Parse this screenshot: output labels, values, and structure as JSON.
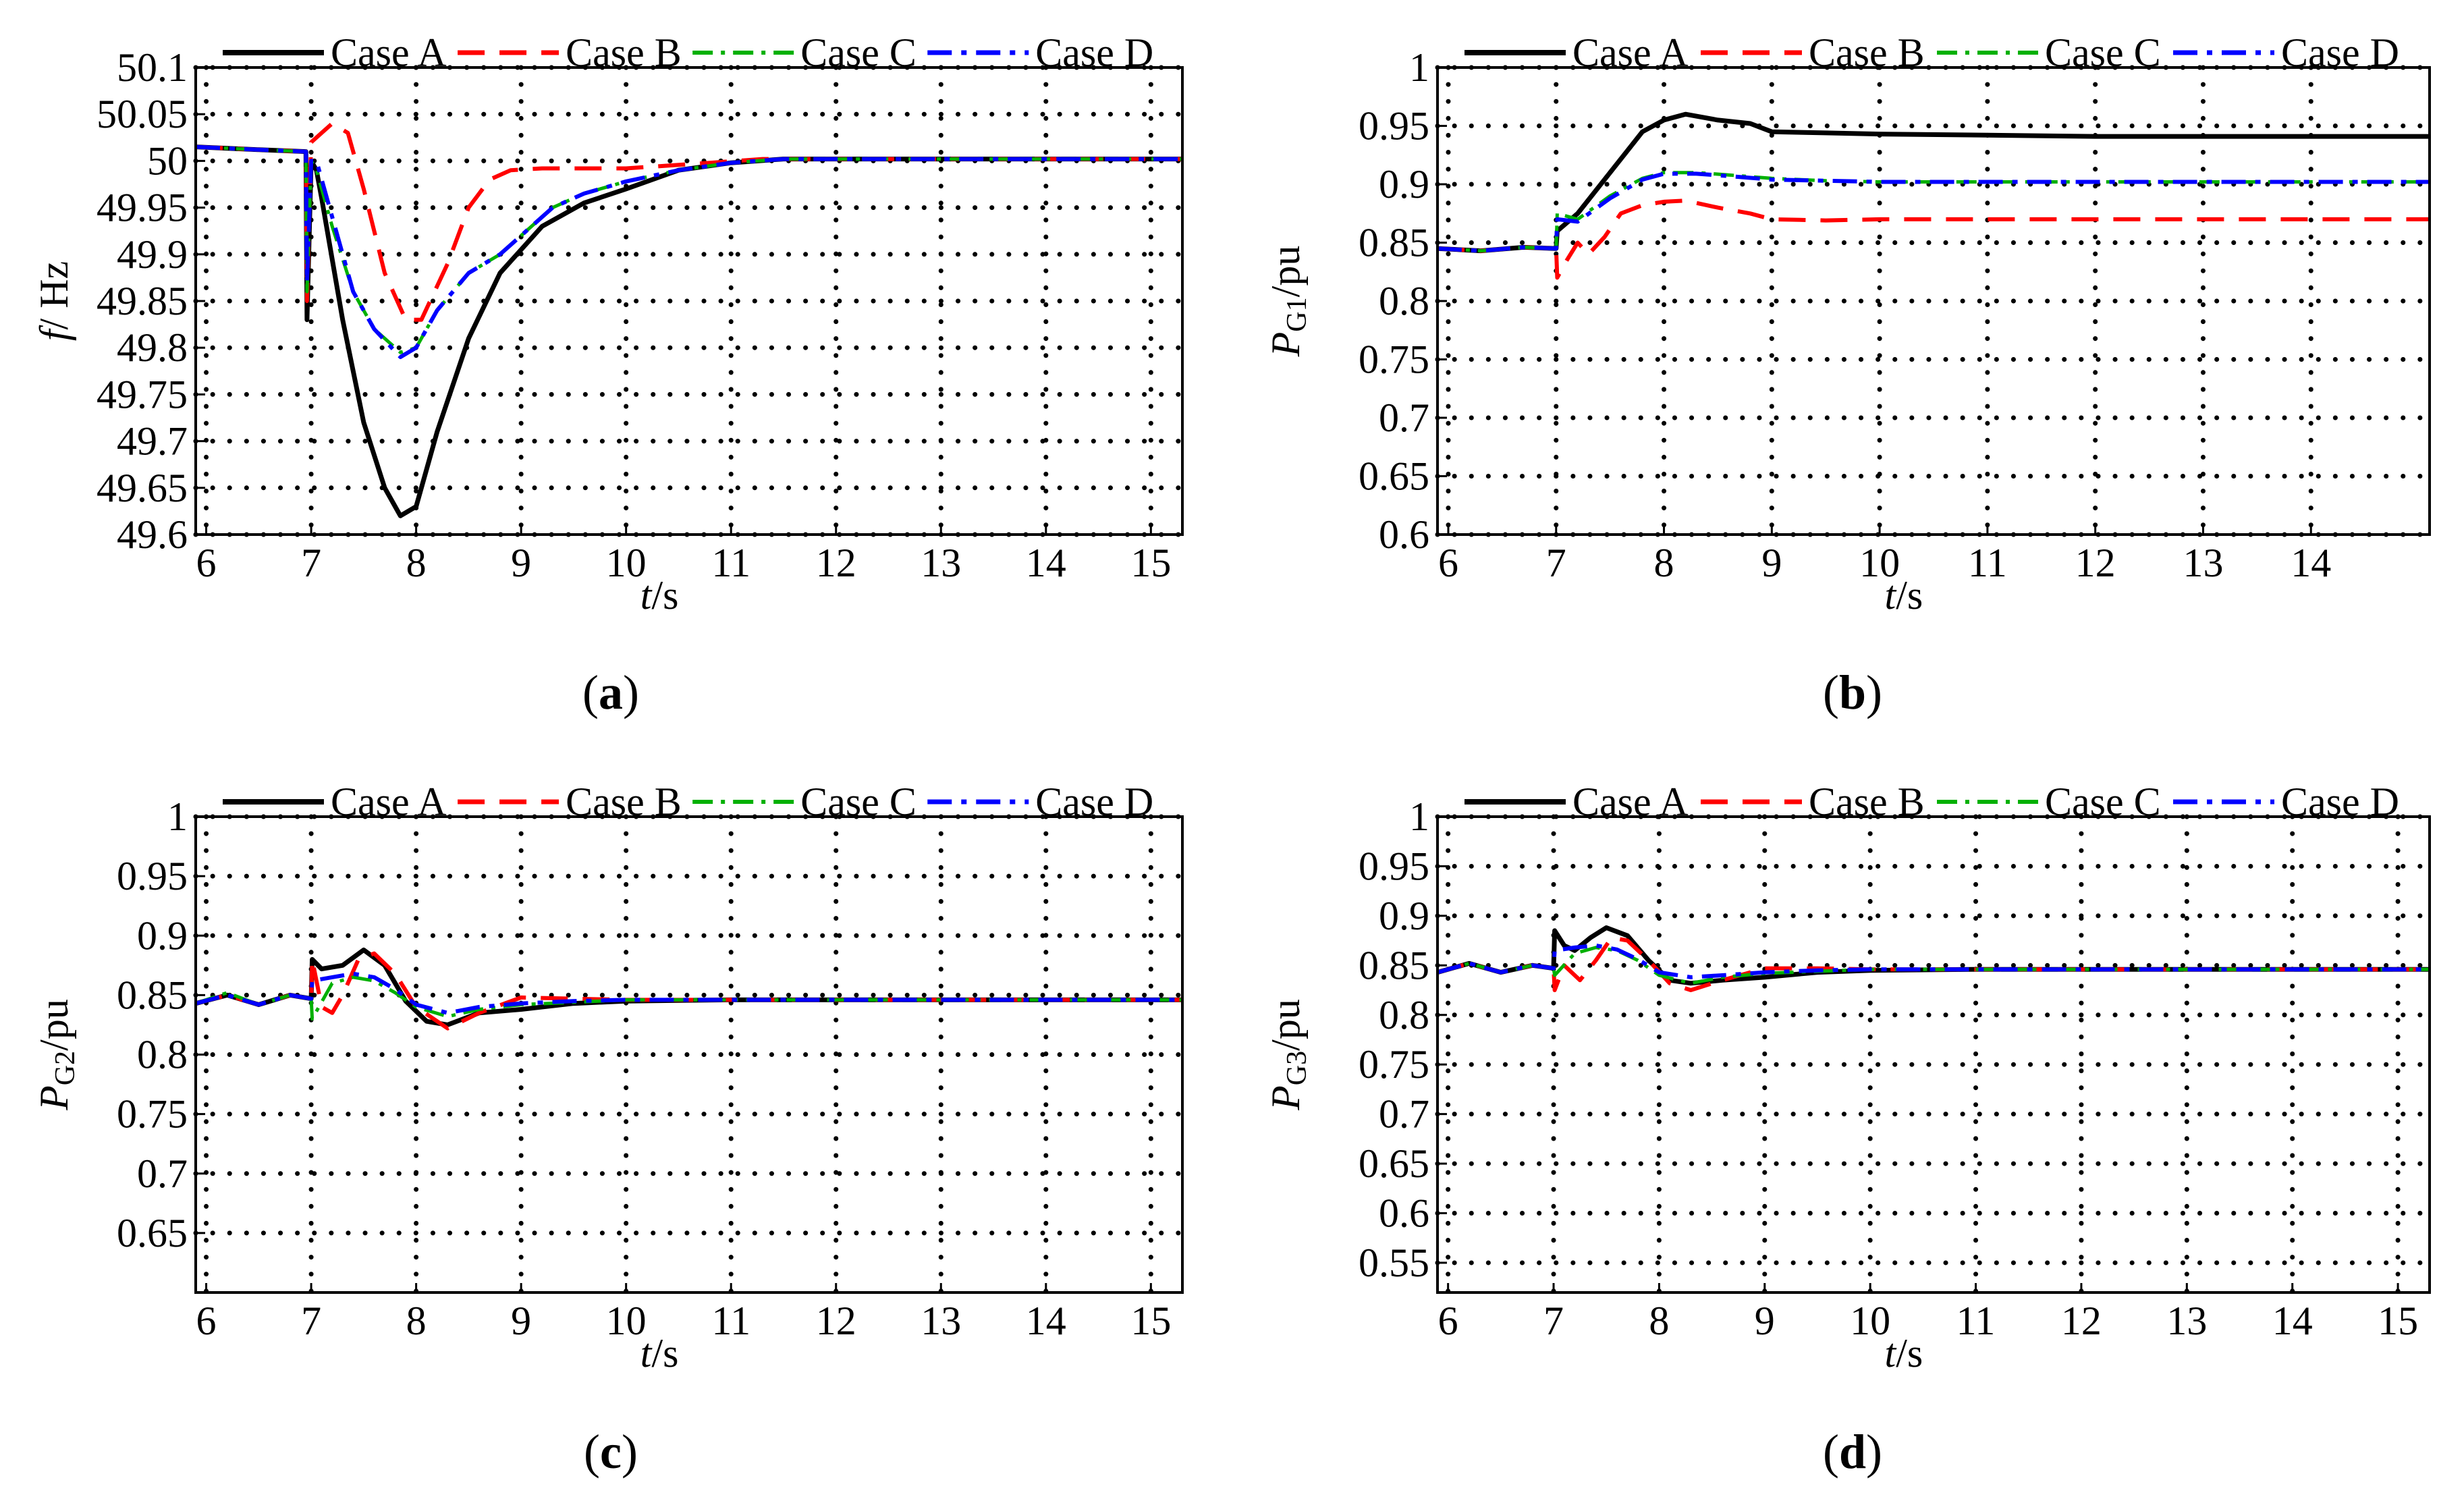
{
  "figure": {
    "panel_labels": [
      "a",
      "b",
      "c",
      "d"
    ]
  },
  "colors": {
    "Case A": "#000000",
    "Case B": "#ff0000",
    "Case C": "#00b000",
    "Case D": "#0000ff"
  },
  "chart_data": [
    {
      "id": "a",
      "type": "line",
      "title": "",
      "label": "a",
      "ylabel_main": "f",
      "ylabel_sub": "",
      "ylabel_unit": "/ Hz",
      "xlabel_main": "t",
      "xlabel_unit": "/s",
      "xlim": [
        5.9,
        15.3
      ],
      "ylim": [
        49.6,
        50.1
      ],
      "xticks": [
        6,
        7,
        8,
        9,
        10,
        11,
        12,
        13,
        14,
        15
      ],
      "yticks": [
        "49.6",
        "49.65",
        "49.7",
        "49.75",
        "49.8",
        "49.85",
        "49.9",
        "49.95",
        "50",
        "50.05",
        "50.1"
      ],
      "legend": [
        "Case A",
        "Case B",
        "Case C",
        "Case D"
      ],
      "series": [
        {
          "name": "Case A",
          "x": [
            5.9,
            6.5,
            6.95,
            6.96,
            7.0,
            7.05,
            7.1,
            7.3,
            7.5,
            7.7,
            7.85,
            8.0,
            8.2,
            8.5,
            8.8,
            9.2,
            9.6,
            10.0,
            10.5,
            11.0,
            11.5,
            12,
            13,
            14,
            15.3
          ],
          "y": [
            50.015,
            50.012,
            50.01,
            49.83,
            50.0,
            49.99,
            49.96,
            49.83,
            49.72,
            49.65,
            49.62,
            49.63,
            49.71,
            49.81,
            49.88,
            49.93,
            49.955,
            49.97,
            49.99,
            49.998,
            50.002,
            50.002,
            50.002,
            50.002,
            50.002
          ]
        },
        {
          "name": "Case B",
          "x": [
            5.9,
            6.5,
            6.95,
            6.96,
            7.0,
            7.1,
            7.2,
            7.35,
            7.5,
            7.7,
            7.9,
            8.05,
            8.3,
            8.5,
            8.7,
            8.9,
            9.2,
            10.0,
            10.8,
            11.3,
            12,
            13,
            14,
            15.3
          ],
          "y": [
            50.015,
            50.012,
            50.01,
            49.85,
            50.02,
            50.03,
            50.04,
            50.03,
            49.97,
            49.88,
            49.83,
            49.83,
            49.89,
            49.95,
            49.98,
            49.99,
            49.992,
            49.992,
            49.998,
            50.002,
            50.002,
            50.002,
            50.002,
            50.002
          ]
        },
        {
          "name": "Case C",
          "x": [
            5.9,
            6.5,
            6.95,
            6.96,
            7.0,
            7.05,
            7.2,
            7.4,
            7.6,
            7.85,
            8.0,
            8.2,
            8.5,
            8.8,
            9.0,
            9.3,
            9.6,
            10.0,
            10.5,
            11.0,
            11.5,
            12,
            13,
            14,
            15.3
          ],
          "y": [
            50.015,
            50.012,
            50.01,
            49.86,
            50.0,
            49.99,
            49.93,
            49.86,
            49.82,
            49.795,
            49.8,
            49.84,
            49.88,
            49.9,
            49.92,
            49.95,
            49.965,
            49.978,
            49.99,
            49.998,
            50.002,
            50.002,
            50.002,
            50.002,
            50.002
          ]
        },
        {
          "name": "Case D",
          "x": [
            5.9,
            6.5,
            6.95,
            6.96,
            7.0,
            7.05,
            7.2,
            7.4,
            7.6,
            7.85,
            8.0,
            8.2,
            8.5,
            8.8,
            9.0,
            9.3,
            9.6,
            10.0,
            10.5,
            11.0,
            11.5,
            12,
            13,
            14,
            15.3
          ],
          "y": [
            50.015,
            50.012,
            50.01,
            49.87,
            50.0,
            50.0,
            49.94,
            49.86,
            49.82,
            49.79,
            49.8,
            49.84,
            49.88,
            49.9,
            49.92,
            49.95,
            49.965,
            49.978,
            49.99,
            49.998,
            50.002,
            50.002,
            50.002,
            50.002,
            50.002
          ]
        }
      ]
    },
    {
      "id": "b",
      "type": "line",
      "title": "",
      "label": "b",
      "ylabel_main": "P",
      "ylabel_sub": "G1",
      "ylabel_unit": "/pu",
      "xlabel_main": "t",
      "xlabel_unit": "/s",
      "xlim": [
        5.9,
        15.1
      ],
      "ylim": [
        0.6,
        1.0
      ],
      "xticks": [
        6,
        7,
        8,
        9,
        10,
        11,
        12,
        13,
        14
      ],
      "yticks": [
        "0.6",
        "0.65",
        "0.7",
        "0.75",
        "0.8",
        "0.85",
        "0.9",
        "0.95",
        "1"
      ],
      "legend": [
        "Case A",
        "Case B",
        "Case C",
        "Case D"
      ],
      "series": [
        {
          "name": "Case A",
          "x": [
            5.9,
            6.3,
            6.7,
            7.0,
            7.01,
            7.2,
            7.5,
            7.8,
            8.0,
            8.2,
            8.5,
            8.8,
            9.0,
            9.5,
            10,
            11,
            12,
            13,
            14,
            15.1
          ],
          "y": [
            0.845,
            0.843,
            0.846,
            0.845,
            0.86,
            0.875,
            0.91,
            0.945,
            0.955,
            0.96,
            0.955,
            0.952,
            0.945,
            0.944,
            0.943,
            0.942,
            0.941,
            0.941,
            0.941,
            0.941
          ]
        },
        {
          "name": "Case B",
          "x": [
            5.9,
            6.3,
            6.7,
            7.0,
            7.01,
            7.1,
            7.2,
            7.3,
            7.45,
            7.6,
            7.8,
            8.0,
            8.2,
            8.5,
            8.8,
            9.0,
            9.5,
            10,
            11,
            12,
            13,
            14,
            15.1
          ],
          "y": [
            0.845,
            0.843,
            0.846,
            0.845,
            0.82,
            0.835,
            0.85,
            0.84,
            0.855,
            0.875,
            0.882,
            0.885,
            0.886,
            0.88,
            0.875,
            0.87,
            0.869,
            0.87,
            0.87,
            0.87,
            0.87,
            0.87,
            0.87
          ]
        },
        {
          "name": "Case C",
          "x": [
            5.9,
            6.3,
            6.7,
            7.0,
            7.01,
            7.2,
            7.5,
            7.8,
            8.0,
            8.3,
            8.6,
            9.0,
            9.5,
            10,
            11,
            12,
            13,
            14,
            15.1
          ],
          "y": [
            0.845,
            0.843,
            0.846,
            0.845,
            0.875,
            0.87,
            0.89,
            0.905,
            0.91,
            0.91,
            0.908,
            0.905,
            0.903,
            0.902,
            0.902,
            0.902,
            0.902,
            0.902,
            0.902
          ]
        },
        {
          "name": "Case D",
          "x": [
            5.9,
            6.3,
            6.7,
            7.0,
            7.01,
            7.2,
            7.5,
            7.8,
            8.0,
            8.3,
            8.6,
            9.0,
            9.5,
            10,
            11,
            12,
            13,
            14,
            15.1
          ],
          "y": [
            0.845,
            0.843,
            0.846,
            0.845,
            0.87,
            0.868,
            0.888,
            0.904,
            0.909,
            0.909,
            0.907,
            0.904,
            0.903,
            0.902,
            0.902,
            0.902,
            0.902,
            0.902,
            0.902
          ]
        }
      ]
    },
    {
      "id": "c",
      "type": "line",
      "title": "",
      "label": "c",
      "ylabel_main": "P",
      "ylabel_sub": "G2",
      "ylabel_unit": "/pu",
      "xlabel_main": "t",
      "xlabel_unit": "/s",
      "xlim": [
        5.9,
        15.3
      ],
      "ylim": [
        0.6,
        1.0
      ],
      "xticks": [
        6,
        7,
        8,
        9,
        10,
        11,
        12,
        13,
        14,
        15
      ],
      "yticks": [
        "0.65",
        "0.7",
        "0.75",
        "0.8",
        "0.85",
        "0.9",
        "0.95",
        "1"
      ],
      "legend": [
        "Case A",
        "Case B",
        "Case C",
        "Case D"
      ],
      "series": [
        {
          "name": "Case A",
          "x": [
            5.9,
            6.2,
            6.5,
            6.8,
            7.0,
            7.01,
            7.1,
            7.3,
            7.5,
            7.7,
            7.9,
            8.1,
            8.3,
            8.6,
            9.0,
            9.5,
            10,
            11,
            12,
            13,
            14,
            15.3
          ],
          "y": [
            0.843,
            0.85,
            0.842,
            0.85,
            0.847,
            0.88,
            0.872,
            0.875,
            0.888,
            0.875,
            0.845,
            0.828,
            0.825,
            0.835,
            0.838,
            0.843,
            0.845,
            0.846,
            0.846,
            0.846,
            0.846,
            0.846
          ]
        },
        {
          "name": "Case B",
          "x": [
            5.9,
            6.2,
            6.5,
            6.8,
            7.0,
            7.01,
            7.1,
            7.2,
            7.3,
            7.45,
            7.6,
            7.8,
            8.0,
            8.3,
            8.6,
            9.0,
            9.5,
            10,
            11,
            12,
            13,
            14,
            15.3
          ],
          "y": [
            0.843,
            0.85,
            0.842,
            0.85,
            0.847,
            0.88,
            0.84,
            0.835,
            0.85,
            0.88,
            0.885,
            0.868,
            0.84,
            0.822,
            0.835,
            0.848,
            0.847,
            0.846,
            0.846,
            0.846,
            0.846,
            0.846,
            0.846
          ]
        },
        {
          "name": "Case C",
          "x": [
            5.9,
            6.2,
            6.5,
            6.8,
            7.0,
            7.01,
            7.2,
            7.4,
            7.6,
            7.8,
            8.0,
            8.3,
            8.6,
            9.0,
            9.5,
            10,
            11,
            12,
            13,
            14,
            15.3
          ],
          "y": [
            0.843,
            0.852,
            0.842,
            0.85,
            0.847,
            0.83,
            0.86,
            0.865,
            0.862,
            0.852,
            0.84,
            0.832,
            0.838,
            0.842,
            0.844,
            0.846,
            0.846,
            0.846,
            0.846,
            0.846,
            0.846
          ]
        },
        {
          "name": "Case D",
          "x": [
            5.9,
            6.2,
            6.5,
            6.8,
            7.0,
            7.01,
            7.2,
            7.4,
            7.6,
            7.8,
            8.0,
            8.3,
            8.6,
            9.0,
            9.5,
            10,
            11,
            12,
            13,
            14,
            15.3
          ],
          "y": [
            0.843,
            0.85,
            0.842,
            0.85,
            0.847,
            0.862,
            0.865,
            0.868,
            0.865,
            0.855,
            0.842,
            0.835,
            0.84,
            0.843,
            0.845,
            0.846,
            0.846,
            0.846,
            0.846,
            0.846,
            0.846
          ]
        }
      ]
    },
    {
      "id": "d",
      "type": "line",
      "title": "",
      "label": "d",
      "ylabel_main": "P",
      "ylabel_sub": "G3",
      "ylabel_unit": "/pu",
      "xlabel_main": "t",
      "xlabel_unit": "/s",
      "xlim": [
        5.9,
        15.3
      ],
      "ylim": [
        0.52,
        1.0
      ],
      "xticks": [
        6,
        7,
        8,
        9,
        10,
        11,
        12,
        13,
        14,
        15
      ],
      "yticks": [
        "0.55",
        "0.6",
        "0.65",
        "0.7",
        "0.75",
        "0.8",
        "0.85",
        "0.9",
        "0.95",
        "1"
      ],
      "legend": [
        "Case A",
        "Case B",
        "Case C",
        "Case D"
      ],
      "series": [
        {
          "name": "Case A",
          "x": [
            5.9,
            6.2,
            6.5,
            6.8,
            7.0,
            7.01,
            7.1,
            7.2,
            7.35,
            7.5,
            7.7,
            7.9,
            8.1,
            8.3,
            8.6,
            9.0,
            9.5,
            10,
            11,
            12,
            13,
            14,
            15.3
          ],
          "y": [
            0.843,
            0.852,
            0.843,
            0.85,
            0.847,
            0.885,
            0.87,
            0.865,
            0.878,
            0.888,
            0.88,
            0.855,
            0.835,
            0.832,
            0.835,
            0.838,
            0.843,
            0.845,
            0.846,
            0.846,
            0.846,
            0.846,
            0.846
          ]
        },
        {
          "name": "Case B",
          "x": [
            5.9,
            6.2,
            6.5,
            6.8,
            7.0,
            7.01,
            7.1,
            7.25,
            7.4,
            7.55,
            7.7,
            7.9,
            8.1,
            8.3,
            8.6,
            9.0,
            9.5,
            10,
            11,
            12,
            13,
            14,
            15.3
          ],
          "y": [
            0.843,
            0.852,
            0.843,
            0.85,
            0.847,
            0.825,
            0.85,
            0.835,
            0.855,
            0.878,
            0.875,
            0.855,
            0.832,
            0.825,
            0.835,
            0.847,
            0.847,
            0.846,
            0.846,
            0.846,
            0.846,
            0.846,
            0.846
          ]
        },
        {
          "name": "Case C",
          "x": [
            5.9,
            6.2,
            6.5,
            6.8,
            7.0,
            7.01,
            7.2,
            7.4,
            7.6,
            7.8,
            8.0,
            8.3,
            8.6,
            9.0,
            9.5,
            10,
            11,
            12,
            13,
            14,
            15.3
          ],
          "y": [
            0.843,
            0.852,
            0.843,
            0.85,
            0.847,
            0.84,
            0.862,
            0.868,
            0.865,
            0.855,
            0.84,
            0.832,
            0.838,
            0.842,
            0.844,
            0.846,
            0.846,
            0.846,
            0.846,
            0.846,
            0.846
          ]
        },
        {
          "name": "Case D",
          "x": [
            5.9,
            6.2,
            6.5,
            6.8,
            7.0,
            7.01,
            7.2,
            7.4,
            7.6,
            7.8,
            8.0,
            8.3,
            8.6,
            9.0,
            9.5,
            10,
            11,
            12,
            13,
            14,
            15.3
          ],
          "y": [
            0.843,
            0.852,
            0.843,
            0.85,
            0.847,
            0.865,
            0.868,
            0.87,
            0.866,
            0.856,
            0.843,
            0.838,
            0.84,
            0.843,
            0.845,
            0.846,
            0.846,
            0.846,
            0.846,
            0.846,
            0.846
          ]
        }
      ]
    }
  ]
}
